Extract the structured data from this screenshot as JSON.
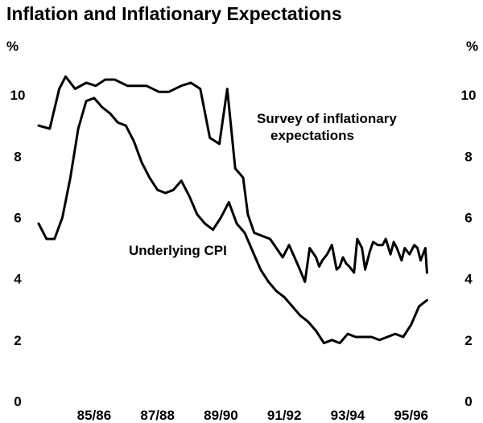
{
  "chart_data": {
    "type": "line",
    "title": "Inflation and Inflationary Expectations",
    "y_unit_left": "%",
    "y_unit_right": "%",
    "ylim": [
      0,
      11
    ],
    "yticks": [
      "0",
      "2",
      "4",
      "6",
      "8",
      "10"
    ],
    "x_range": [
      1984.0,
      1996.9
    ],
    "xtick_labels": [
      "85/86",
      "87/88",
      "89/90",
      "91/92",
      "93/94",
      "95/96"
    ],
    "xtick_positions": [
      1985.75,
      1987.75,
      1989.75,
      1991.75,
      1993.75,
      1995.75
    ],
    "grid": false,
    "legend": "none",
    "series": [
      {
        "name": "Survey of inflationary expectations",
        "label_line1": "Survey of inflationary",
        "label_line2": "expectations",
        "x": [
          1984.0,
          1984.35,
          1984.65,
          1984.85,
          1985.15,
          1985.5,
          1985.8,
          1986.1,
          1986.4,
          1986.8,
          1987.1,
          1987.4,
          1987.8,
          1988.1,
          1988.5,
          1988.8,
          1989.1,
          1989.4,
          1989.7,
          1989.95,
          1990.2,
          1990.45,
          1990.6,
          1990.8,
          1991.05,
          1991.3,
          1991.5,
          1991.7,
          1991.9,
          1992.2,
          1992.4,
          1992.55,
          1992.75,
          1992.85,
          1992.95,
          1993.1,
          1993.25,
          1993.4,
          1993.5,
          1993.6,
          1993.7,
          1993.8,
          1993.95,
          1994.05,
          1994.2,
          1994.3,
          1994.45,
          1994.55,
          1994.7,
          1994.85,
          1994.95,
          1995.1,
          1995.2,
          1995.3,
          1995.45,
          1995.55,
          1995.7,
          1995.85,
          1995.95,
          1996.05,
          1996.2,
          1996.25
        ],
        "y": [
          9.0,
          8.9,
          10.2,
          10.6,
          10.2,
          10.4,
          10.3,
          10.5,
          10.5,
          10.3,
          10.3,
          10.3,
          10.1,
          10.1,
          10.3,
          10.4,
          10.2,
          8.6,
          8.4,
          10.2,
          7.6,
          7.3,
          6.1,
          5.5,
          5.4,
          5.3,
          5.0,
          4.7,
          5.1,
          4.4,
          3.9,
          5.0,
          4.7,
          4.4,
          4.6,
          4.8,
          5.1,
          4.3,
          4.4,
          4.7,
          4.5,
          4.4,
          4.2,
          5.3,
          5.0,
          4.3,
          4.9,
          5.2,
          5.1,
          5.1,
          5.3,
          4.8,
          5.2,
          5.0,
          4.6,
          5.0,
          4.8,
          5.1,
          5.0,
          4.6,
          5.0,
          4.2
        ]
      },
      {
        "name": "Underlying CPI",
        "label_line1": "Underlying CPI",
        "x": [
          1984.0,
          1984.25,
          1984.5,
          1984.75,
          1985.0,
          1985.25,
          1985.5,
          1985.75,
          1986.0,
          1986.25,
          1986.5,
          1986.75,
          1987.0,
          1987.25,
          1987.5,
          1987.75,
          1988.0,
          1988.25,
          1988.5,
          1988.75,
          1989.0,
          1989.25,
          1989.5,
          1989.75,
          1990.0,
          1990.25,
          1990.5,
          1990.75,
          1991.0,
          1991.25,
          1991.5,
          1991.75,
          1992.0,
          1992.25,
          1992.5,
          1992.75,
          1993.0,
          1993.25,
          1993.5,
          1993.75,
          1994.0,
          1994.25,
          1994.5,
          1994.75,
          1995.0,
          1995.25,
          1995.5,
          1995.75,
          1996.0,
          1996.25
        ],
        "y": [
          5.8,
          5.3,
          5.3,
          6.0,
          7.3,
          8.9,
          9.8,
          9.9,
          9.6,
          9.4,
          9.1,
          9.0,
          8.5,
          7.8,
          7.3,
          6.9,
          6.8,
          6.9,
          7.2,
          6.7,
          6.1,
          5.8,
          5.6,
          6.0,
          6.5,
          5.8,
          5.5,
          4.9,
          4.3,
          3.9,
          3.6,
          3.4,
          3.1,
          2.8,
          2.6,
          2.3,
          1.9,
          2.0,
          1.9,
          2.2,
          2.1,
          2.1,
          2.1,
          2.0,
          2.1,
          2.2,
          2.1,
          2.5,
          3.1,
          3.3
        ]
      }
    ]
  }
}
